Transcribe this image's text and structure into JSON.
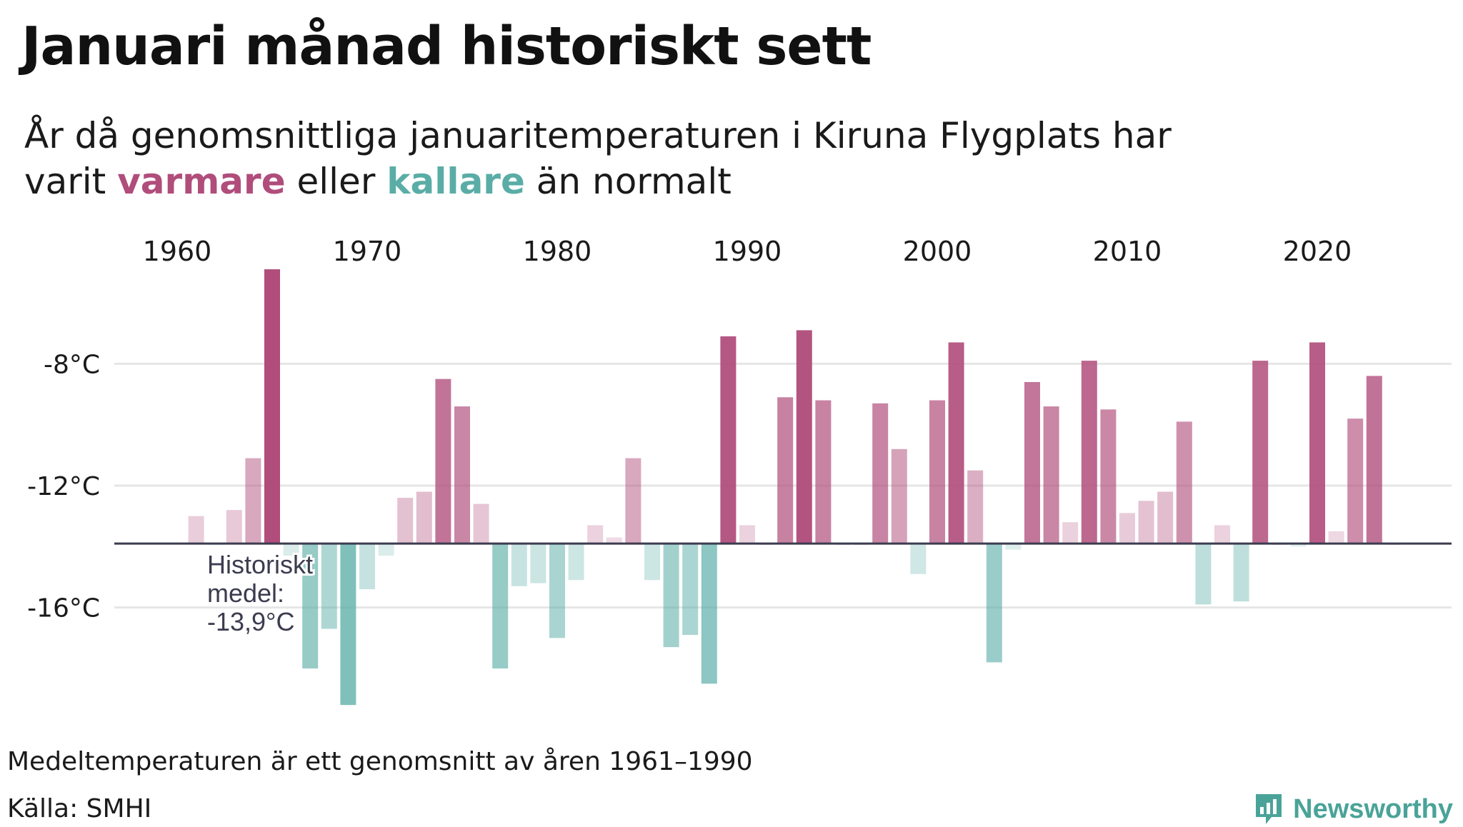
{
  "title": "Januari månad historiskt sett",
  "subtitle": {
    "prefix": "År då genomsnittliga januaritemperaturen i Kiruna Flygplats har",
    "line2_start": "varit",
    "warm_word": "varmare",
    "middle": "eller",
    "cold_word": "kallare",
    "suffix": "än normalt"
  },
  "colors": {
    "warm": "#b04d7b",
    "cold": "#5aada6",
    "baseline": "#3c3c50",
    "grid": "#e6e6e6"
  },
  "chart_data": {
    "type": "bar",
    "title": "Januari månad historiskt sett",
    "baseline": -13.9,
    "baseline_label": [
      "Historiskt",
      "medel:",
      "-13,9°C"
    ],
    "ylim": [
      -19.5,
      -4.5
    ],
    "y_ticks": [
      -8,
      -12,
      -16
    ],
    "y_tick_labels": [
      "-8°C",
      "-12°C",
      "-16°C"
    ],
    "x_ticks": [
      1960,
      1970,
      1980,
      1990,
      2000,
      2010,
      2020
    ],
    "x_tick_labels": [
      "1960",
      "1970",
      "1980",
      "1990",
      "2000",
      "2010",
      "2020"
    ],
    "x_axis_position": "top",
    "years": [
      1961,
      1962,
      1963,
      1964,
      1965,
      1966,
      1967,
      1968,
      1969,
      1970,
      1971,
      1972,
      1973,
      1974,
      1975,
      1976,
      1977,
      1978,
      1979,
      1980,
      1981,
      1982,
      1983,
      1984,
      1985,
      1986,
      1987,
      1988,
      1989,
      1990,
      1991,
      1992,
      1993,
      1994,
      1995,
      1996,
      1997,
      1998,
      1999,
      2000,
      2001,
      2002,
      2003,
      2004,
      2005,
      2006,
      2007,
      2008,
      2009,
      2010,
      2011,
      2012,
      2013,
      2014,
      2015,
      2016,
      2017,
      2018,
      2019,
      2020,
      2021,
      2022,
      2023,
      2024
    ],
    "values": [
      -13.0,
      -13.95,
      -12.8,
      -11.1,
      -4.9,
      -14.3,
      -18.0,
      -16.7,
      -19.2,
      -15.4,
      -14.3,
      -12.4,
      -12.2,
      -8.5,
      -9.4,
      -12.6,
      -18.0,
      -15.3,
      -15.2,
      -17.0,
      -15.1,
      -13.3,
      -13.7,
      -11.1,
      -15.1,
      -17.3,
      -16.9,
      -18.5,
      -7.1,
      -13.3,
      -13.9,
      -9.1,
      -6.9,
      -9.2,
      -13.9,
      -13.9,
      -9.3,
      -10.8,
      -14.9,
      -9.2,
      -7.3,
      -11.5,
      -17.8,
      -14.1,
      -8.6,
      -9.4,
      -13.2,
      -7.9,
      -9.5,
      -12.9,
      -12.5,
      -12.2,
      -9.9,
      -15.9,
      -13.3,
      -15.8,
      -7.9,
      -13.9,
      -14.0,
      -7.3,
      -13.5,
      -9.8,
      -8.4,
      -13.9
    ]
  },
  "footnote": "Medeltemperaturen är ett genomsnitt av åren 1961–1990",
  "source": "Källa: SMHI",
  "brand": "Newsworthy",
  "brand_icon": "newsworthy-logo-icon"
}
